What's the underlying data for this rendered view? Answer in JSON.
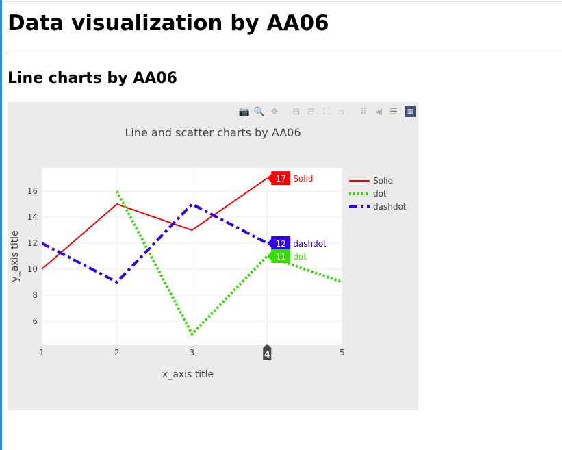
{
  "page": {
    "heading": "Data visualization by AA06",
    "subheading": "Line charts by AA06"
  },
  "modebar": {
    "buttons": [
      {
        "icon": "camera-icon",
        "glyph": "📷"
      },
      {
        "icon": "zoom-icon",
        "glyph": "🔍"
      },
      {
        "icon": "pan-icon",
        "glyph": "✥"
      },
      {
        "icon": "zoom-in-icon",
        "glyph": "⊞"
      },
      {
        "icon": "zoom-out-icon",
        "glyph": "⊟"
      },
      {
        "icon": "autoscale-icon",
        "glyph": "⛶"
      },
      {
        "icon": "reset-axes-icon",
        "glyph": "⌂"
      },
      {
        "icon": "spike-lines-icon",
        "glyph": "⠿"
      },
      {
        "icon": "hover-closest-icon",
        "glyph": "◀"
      },
      {
        "icon": "hover-compare-icon",
        "glyph": "☰"
      }
    ],
    "logo_icon": "plotly-logo-icon",
    "logo_glyph": "▥"
  },
  "chart_data": {
    "type": "line",
    "title": "Line and scatter charts by AA06",
    "xlabel": "x_axis title",
    "ylabel": "y_axis title",
    "x": [
      1,
      2,
      3,
      4,
      5
    ],
    "xlim": [
      1,
      5
    ],
    "ylim": [
      4.2,
      17.8
    ],
    "xticks": [
      "1",
      "2",
      "3",
      "4",
      "5"
    ],
    "yticks": [
      6,
      8,
      10,
      12,
      14,
      16
    ],
    "grid": true,
    "legend_position": "right",
    "series": [
      {
        "name": "Solid",
        "x": [
          1,
          2,
          3,
          4
        ],
        "values": [
          10,
          15,
          13,
          17
        ],
        "color": "#ff0000",
        "dash": "solid"
      },
      {
        "name": "dot",
        "x": [
          2,
          3,
          4,
          5
        ],
        "values": [
          16,
          5,
          11,
          9
        ],
        "color": "#33dd00",
        "dash": "dot"
      },
      {
        "name": "dashdot",
        "x": [
          1,
          2,
          3,
          4
        ],
        "values": [
          12,
          9,
          15,
          12
        ],
        "color": "#3300ee",
        "dash": "dashdot"
      }
    ],
    "hover": {
      "x_label": "4",
      "labels": [
        {
          "series": "Solid",
          "value_text": "17",
          "name_text": "Solid"
        },
        {
          "series": "dashdot",
          "value_text": "12",
          "name_text": "dashdot"
        },
        {
          "series": "dot",
          "value_text": "11",
          "name_text": "dot"
        }
      ]
    },
    "colors": {
      "plot_bg": "#ffffff",
      "paper_bg": "#ebebeb",
      "grid": "#eeeeee",
      "text": "#444444"
    }
  }
}
